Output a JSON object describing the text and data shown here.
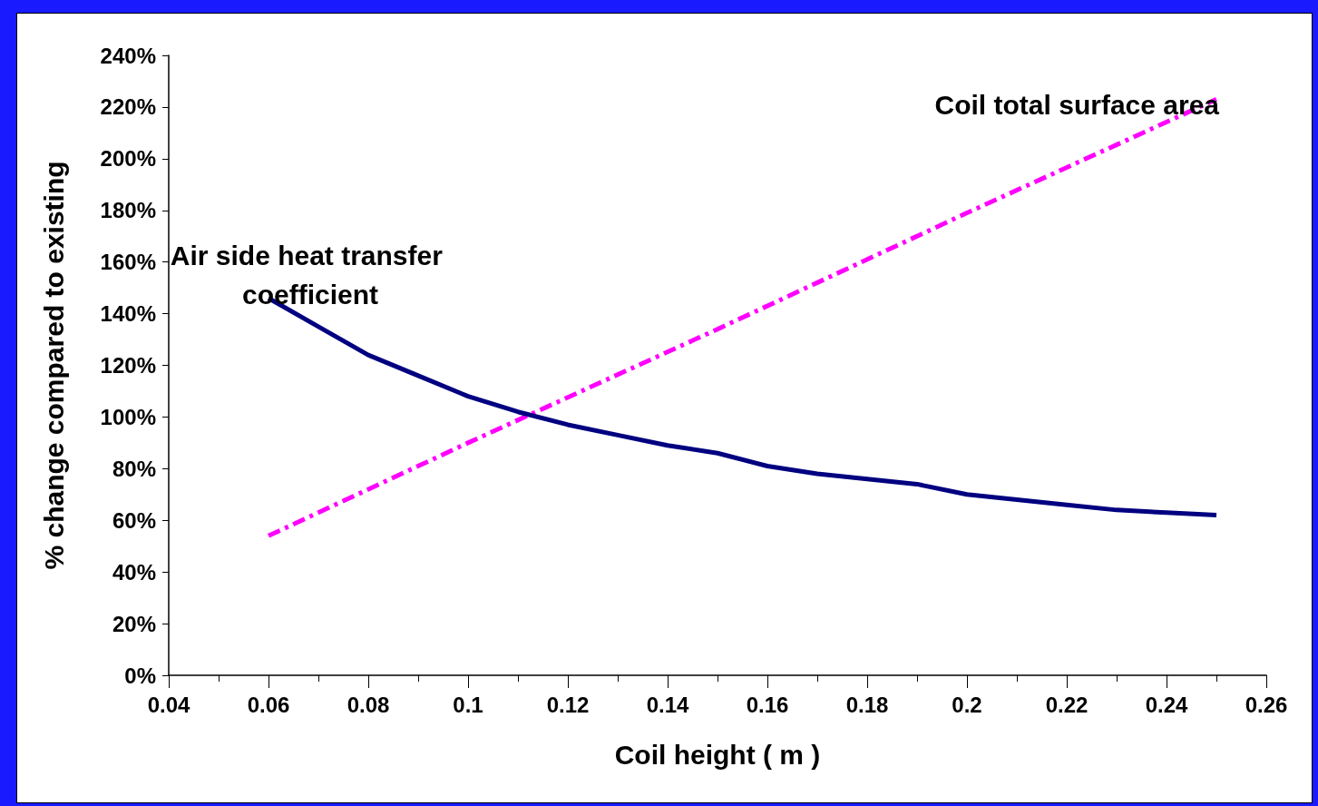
{
  "chart_data": {
    "type": "line",
    "xlabel": "Coil height ( m )",
    "ylabel": "% change compared to existing",
    "xlim": [
      0.04,
      0.26
    ],
    "xticks": [
      0.04,
      0.06,
      0.08,
      0.1,
      0.12,
      0.14,
      0.16,
      0.18,
      0.2,
      0.22,
      0.24,
      0.26
    ],
    "ylim": [
      0,
      240
    ],
    "yticks": [
      {
        "value": 0,
        "label": "0%"
      },
      {
        "value": 20,
        "label": "20%"
      },
      {
        "value": 40,
        "label": "40%"
      },
      {
        "value": 60,
        "label": "60%"
      },
      {
        "value": 80,
        "label": "80%"
      },
      {
        "value": 100,
        "label": "100%"
      },
      {
        "value": 120,
        "label": "120%"
      },
      {
        "value": 140,
        "label": "140%"
      },
      {
        "value": 160,
        "label": "160%"
      },
      {
        "value": 180,
        "label": "180%"
      },
      {
        "value": 200,
        "label": "200%"
      },
      {
        "value": 220,
        "label": "220%"
      },
      {
        "value": 240,
        "label": "240%"
      }
    ],
    "grid": false,
    "marker": "none",
    "series": [
      {
        "name": "Air side heat transfer coefficient",
        "color": "#000080",
        "line_style": "solid",
        "x": [
          0.06,
          0.07,
          0.08,
          0.09,
          0.1,
          0.11,
          0.12,
          0.13,
          0.14,
          0.15,
          0.16,
          0.17,
          0.18,
          0.19,
          0.2,
          0.21,
          0.22,
          0.23,
          0.24,
          0.25
        ],
        "values": [
          146,
          135,
          124,
          116,
          108,
          102,
          97,
          93,
          89,
          86,
          81,
          78,
          76,
          74,
          70,
          68,
          66,
          64,
          63,
          62
        ]
      },
      {
        "name": "Coil total surface area",
        "color": "#ff00ff",
        "line_style": "dashed",
        "x": [
          0.06,
          0.1,
          0.15,
          0.2,
          0.25
        ],
        "values": [
          54,
          90,
          134,
          179,
          223
        ]
      }
    ]
  }
}
